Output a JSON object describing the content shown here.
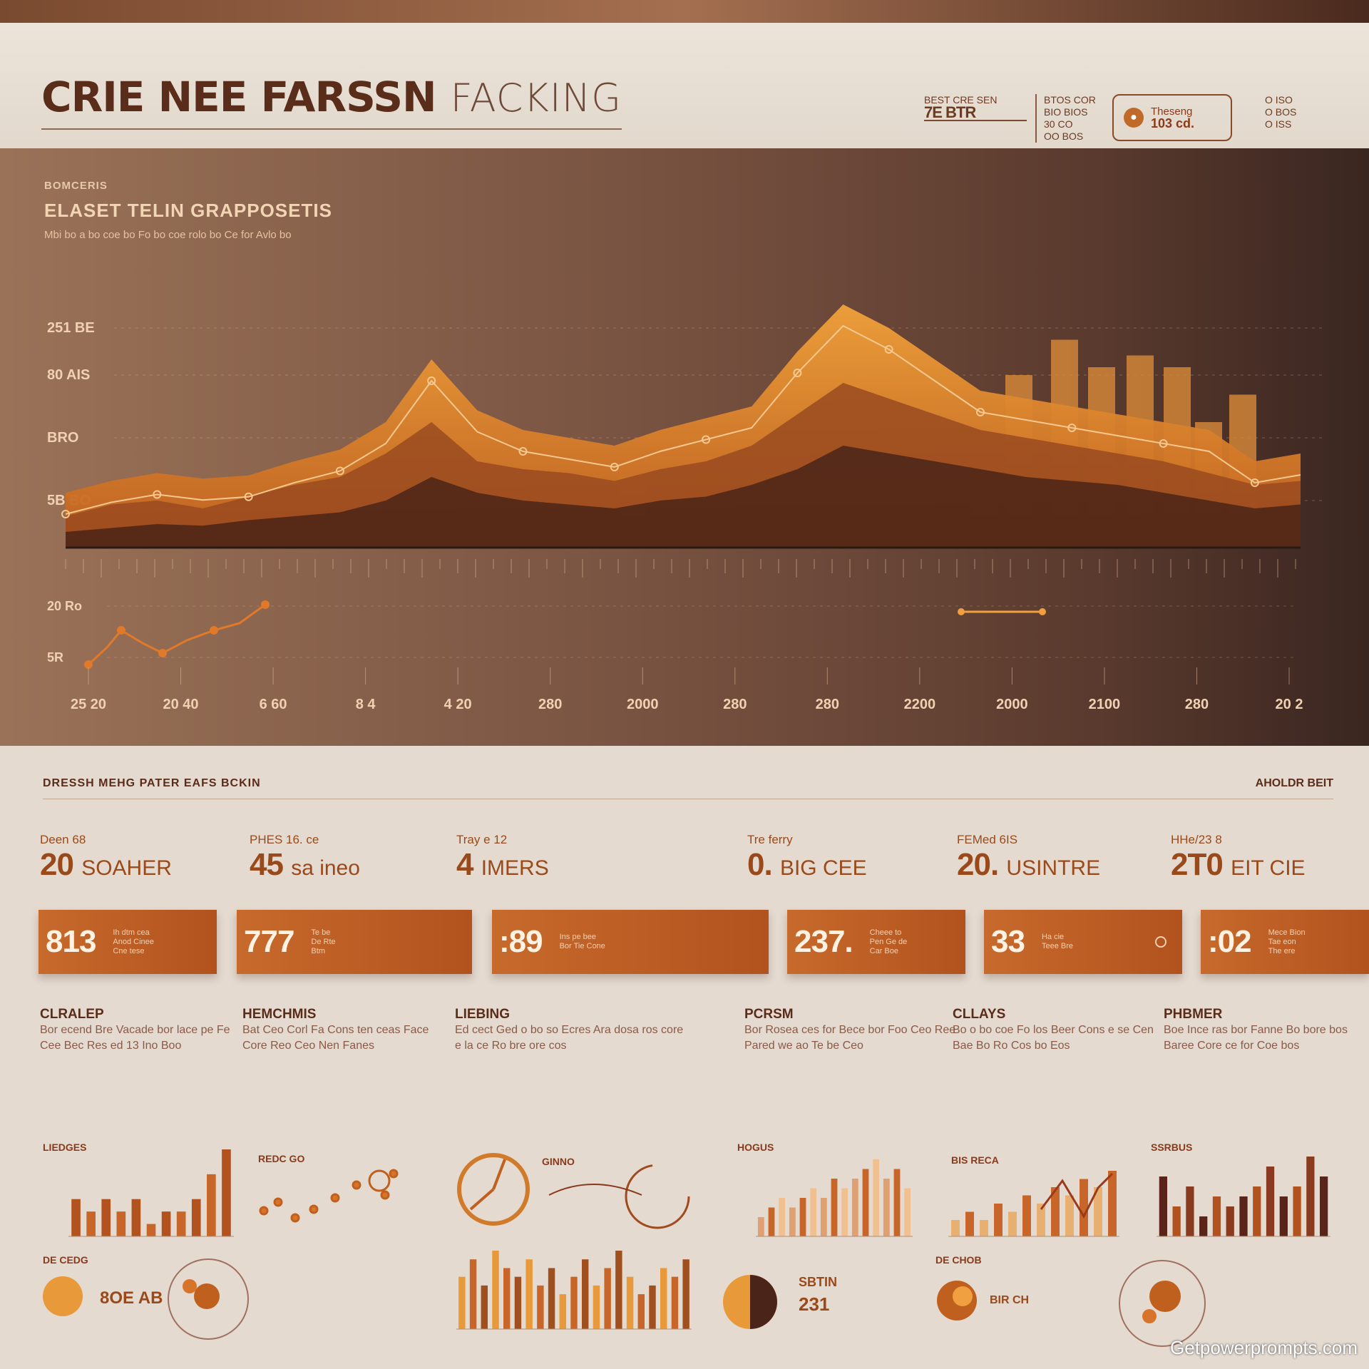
{
  "header": {
    "title_bold": "CRIE NEE FARSSN",
    "title_light": "FACKING",
    "stat1": {
      "label": "BEST CRE SEN",
      "value": "7E BTR"
    },
    "stat2": {
      "lines": [
        "BTOS COR",
        "BIO BIOS",
        "30 CO",
        "OO BOS"
      ]
    },
    "badge": {
      "label": "Theseng",
      "value": "103 cd."
    },
    "stat3": {
      "lines": [
        "O ISO",
        "O BOS",
        "O ISS"
      ]
    }
  },
  "chart_panel": {
    "kicker": "BOMCERIS",
    "title": "ELASET TELIN GRAPPOSETIS",
    "description": "Mbi bo a bo coe bo Fo bo coe rolo bo Ce for Avlo bo",
    "y_ticks": [
      "251 BE",
      "80 AIS",
      "BRO",
      "5B BO"
    ],
    "lower_y_ticks": [
      "20 Ro",
      "5R"
    ],
    "x_ticks": [
      "25 20",
      "20 40",
      "6 60",
      "8 4",
      "4 20",
      "280",
      "2000",
      "280",
      "280",
      "2200",
      "2000",
      "2100",
      "280",
      "20 2"
    ]
  },
  "chart_data": {
    "type": "area",
    "x": [
      1,
      2,
      3,
      4,
      5,
      6,
      7,
      8,
      9,
      10,
      11,
      12,
      13,
      14,
      15,
      16,
      17,
      18,
      19,
      20,
      21,
      22,
      23,
      24,
      25,
      26,
      27,
      28
    ],
    "series": [
      {
        "values": [
          70,
          85,
          95,
          88,
          92,
          110,
          125,
          160,
          240,
          175,
          150,
          140,
          130,
          150,
          165,
          180,
          250,
          310,
          280,
          240,
          200,
          190,
          180,
          170,
          160,
          150,
          110,
          120
        ]
      },
      {
        "values": [
          40,
          55,
          60,
          50,
          65,
          80,
          90,
          120,
          160,
          110,
          100,
          95,
          85,
          100,
          110,
          130,
          170,
          210,
          190,
          170,
          150,
          140,
          130,
          120,
          110,
          95,
          80,
          85
        ]
      },
      {
        "values": [
          20,
          25,
          30,
          28,
          35,
          40,
          45,
          60,
          90,
          70,
          60,
          55,
          50,
          60,
          65,
          80,
          100,
          130,
          120,
          110,
          100,
          90,
          85,
          80,
          70,
          60,
          50,
          55
        ]
      }
    ],
    "bars": [
      90,
      70,
      220,
      265,
      230,
      245,
      230,
      160,
      195,
      235
    ],
    "ylim": [
      0,
      400
    ],
    "grid": true
  },
  "section": {
    "title": "DRESSH MEHG PATER EAFS BCKIN",
    "right_label": "AHOLDR BEIT"
  },
  "kpis": [
    {
      "label": "Deen 68",
      "value": "20",
      "unit": "SOAHER"
    },
    {
      "label": "PHES 16. ce",
      "value": "45",
      "unit": "sa ineo"
    },
    {
      "label": "Tray e 12",
      "value": "4",
      "unit": "IMERS"
    },
    {
      "label": "Tre ferry",
      "value": "0.",
      "unit": "BIG CEE"
    },
    {
      "label": "FEMed 6IS",
      "value": "20.",
      "unit": "USINTRE"
    },
    {
      "label": "HHe/23 8",
      "value": "2T0",
      "unit": "EIT CIE"
    }
  ],
  "band": [
    {
      "num": "813",
      "sub": [
        "Ih dtm cea",
        "Anod Cinee",
        "Cne tese"
      ]
    },
    {
      "num": "777",
      "sub": [
        "Te be",
        "De Rte",
        "Btm"
      ]
    },
    {
      "num": ":89",
      "sub": [
        "Ins pe bee",
        "Bor Tie Cone"
      ]
    },
    {
      "num": "237.",
      "sub": [
        "Cheee to",
        "Pen Ge de",
        "Car Boe"
      ]
    },
    {
      "num": "33",
      "sub": [
        "Ha cie",
        "Teee Bre"
      ]
    },
    {
      "num": ":02",
      "sub": [
        "Mece Bion",
        "Tae eon",
        "The ere"
      ]
    }
  ],
  "descriptions": [
    {
      "title": "CLRALEP",
      "text": "Bor ecend Bre Vacade bor lace pe Fe Cee Bec Res ed 13 Ino Boo"
    },
    {
      "title": "HEMCHMIS",
      "text": "Bat Ceo Corl Fa Cons ten ceas Face Core Reo Ceo Nen Fanes"
    },
    {
      "title": "LIEBING",
      "text": "Ed cect Ged o bo so Ecres Ara dosa ros core e la ce Ro bre ore cos"
    },
    {
      "title": "PCRSM",
      "text": "Bor Rosea ces for Bece bor Foo Ceo Ree Pared we ao Te be Ceo"
    },
    {
      "title": "CLLAYS",
      "text": "Bo o bo coe Fo los Beer Cons e se Cen Bae Bo Ro Cos bo Eos"
    },
    {
      "title": "PHBMER",
      "text": "Boe Ince ras bor Fanne Bo bore bos Baree Core ce for Coe bos"
    }
  ],
  "mini_charts": {
    "bar1": {
      "label": "LIEDGES",
      "values": [
        3,
        2,
        3,
        2,
        3,
        1,
        2,
        2,
        3,
        5,
        7
      ]
    },
    "scatter1": {
      "label": "REDC GO"
    },
    "gauge1": {
      "label": "GINNO"
    },
    "bar2": {
      "label": "HOGUS",
      "values": [
        2,
        3,
        4,
        3,
        4,
        5,
        4,
        6,
        5,
        6,
        7,
        8,
        6,
        7,
        5
      ]
    },
    "scatter2": {
      "label": "BIS RECA"
    },
    "bar3": {
      "label": "SSRBUS",
      "values": [
        6,
        3,
        5,
        2,
        4,
        3,
        4,
        5,
        7,
        4,
        5,
        8,
        6
      ]
    },
    "pie1": {
      "label": "DE CEDG",
      "value": "8OE AB"
    },
    "bar4": {
      "values": [
        6,
        8,
        5,
        9,
        7,
        6,
        8,
        5,
        7,
        4,
        6,
        8,
        5,
        7,
        9,
        6,
        4,
        5,
        7,
        6,
        8
      ]
    },
    "pie2": {
      "label": "SBTIN",
      "value": "231"
    },
    "pie3": {
      "label": "DE CHOB",
      "value": "BIR CH"
    }
  },
  "watermark": "Getpowerprompts.com",
  "colors": {
    "accent": "#c76a2c",
    "dark": "#5a2c1a",
    "chart_light": "#e89a3a",
    "panel_dark": "#3a2620"
  }
}
